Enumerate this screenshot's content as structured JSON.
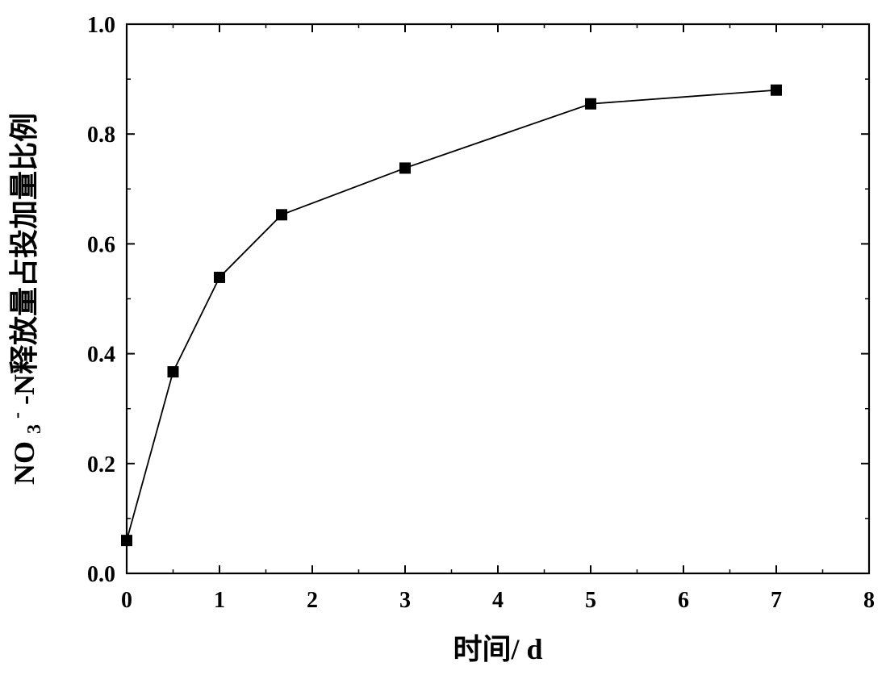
{
  "chart_data": {
    "type": "line",
    "xlabel": "时间/ d",
    "ylabel": {
      "part1": "NO",
      "sub": "3",
      "sup": "-",
      "part2": "-N释放量占投加量比例"
    },
    "xlim": [
      0,
      8
    ],
    "ylim": [
      0.0,
      1.0
    ],
    "x_ticks": [
      "0",
      "1",
      "2",
      "3",
      "4",
      "5",
      "6",
      "7",
      "8"
    ],
    "y_ticks": [
      "0.0",
      "0.2",
      "0.4",
      "0.6",
      "0.8",
      "1.0"
    ],
    "x_tick_values": [
      0,
      1,
      2,
      3,
      4,
      5,
      6,
      7,
      8
    ],
    "y_tick_values": [
      0.0,
      0.2,
      0.4,
      0.6,
      0.8,
      1.0
    ],
    "grid": false,
    "legend": "none",
    "marker": "square",
    "series": [
      {
        "x": [
          0,
          0.5,
          1,
          1.67,
          3,
          5,
          7
        ],
        "y": [
          0.06,
          0.367,
          0.539,
          0.653,
          0.738,
          0.855,
          0.88
        ]
      }
    ],
    "colors": {
      "line": "#000000",
      "marker": "#000000",
      "axis": "#000000"
    }
  }
}
